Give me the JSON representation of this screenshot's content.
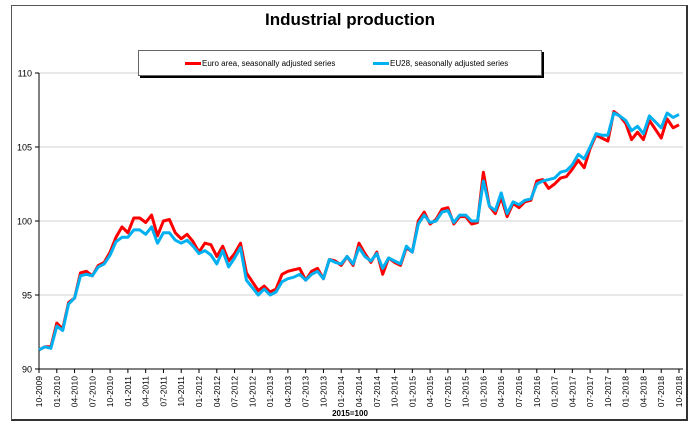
{
  "chart_data": {
    "type": "line",
    "title": "Industrial production",
    "xlabel": "2015=100",
    "ylabel": "",
    "ylim": [
      90,
      110
    ],
    "yticks": [
      90,
      95,
      100,
      105,
      110
    ],
    "grid": true,
    "legend_position": "top-center",
    "x": [
      "10-2009",
      "11-2009",
      "12-2009",
      "01-2010",
      "02-2010",
      "03-2010",
      "04-2010",
      "05-2010",
      "06-2010",
      "07-2010",
      "08-2010",
      "09-2010",
      "10-2010",
      "11-2010",
      "12-2010",
      "01-2011",
      "02-2011",
      "03-2011",
      "04-2011",
      "05-2011",
      "06-2011",
      "07-2011",
      "08-2011",
      "09-2011",
      "10-2011",
      "11-2011",
      "12-2011",
      "01-2012",
      "02-2012",
      "03-2012",
      "04-2012",
      "05-2012",
      "06-2012",
      "07-2012",
      "08-2012",
      "09-2012",
      "10-2012",
      "11-2012",
      "12-2012",
      "01-2013",
      "02-2013",
      "03-2013",
      "04-2013",
      "05-2013",
      "06-2013",
      "07-2013",
      "08-2013",
      "09-2013",
      "10-2013",
      "11-2013",
      "12-2013",
      "01-2014",
      "02-2014",
      "03-2014",
      "04-2014",
      "05-2014",
      "06-2014",
      "07-2014",
      "08-2014",
      "09-2014",
      "10-2014",
      "11-2014",
      "12-2014",
      "01-2015",
      "02-2015",
      "03-2015",
      "04-2015",
      "05-2015",
      "06-2015",
      "07-2015",
      "08-2015",
      "09-2015",
      "10-2015",
      "11-2015",
      "12-2015",
      "01-2016",
      "02-2016",
      "03-2016",
      "04-2016",
      "05-2016",
      "06-2016",
      "07-2016",
      "08-2016",
      "09-2016",
      "10-2016",
      "11-2016",
      "12-2016",
      "01-2017",
      "02-2017",
      "03-2017",
      "04-2017",
      "05-2017",
      "06-2017",
      "07-2017",
      "08-2017",
      "09-2017",
      "10-2017",
      "11-2017",
      "12-2017",
      "01-2018",
      "02-2018",
      "03-2018",
      "04-2018",
      "05-2018",
      "06-2018",
      "07-2018",
      "08-2018",
      "09-2018",
      "10-2018"
    ],
    "xtick_labels": [
      "10-2009",
      "01-2010",
      "04-2010",
      "07-2010",
      "10-2010",
      "01-2011",
      "04-2011",
      "07-2011",
      "10-2011",
      "01-2012",
      "04-2012",
      "07-2012",
      "10-2012",
      "01-2013",
      "04-2013",
      "07-2013",
      "10-2013",
      "01-2014",
      "04-2014",
      "07-2014",
      "10-2014",
      "01-2015",
      "04-2015",
      "07-2015",
      "10-2015",
      "01-2016",
      "04-2016",
      "07-2016",
      "10-2016",
      "01-2017",
      "04-2017",
      "07-2017",
      "10-2017",
      "01-2018",
      "04-2018",
      "07-2018",
      "10-2018"
    ],
    "series": [
      {
        "name": "Euro area, seasonally adjusted series",
        "color": "#ff0000",
        "values": [
          91.3,
          91.5,
          91.5,
          93.1,
          92.7,
          94.5,
          94.8,
          96.5,
          96.6,
          96.3,
          97.0,
          97.2,
          97.9,
          98.9,
          99.6,
          99.2,
          100.2,
          100.2,
          99.9,
          100.4,
          99.0,
          100.0,
          100.1,
          99.2,
          98.8,
          99.1,
          98.6,
          97.9,
          98.5,
          98.4,
          97.6,
          98.3,
          97.3,
          97.8,
          98.5,
          96.5,
          95.9,
          95.3,
          95.6,
          95.2,
          95.4,
          96.4,
          96.6,
          96.7,
          96.8,
          96.0,
          96.6,
          96.8,
          96.1,
          97.4,
          97.3,
          97.0,
          97.6,
          97.0,
          98.5,
          97.8,
          97.2,
          97.9,
          96.4,
          97.5,
          97.2,
          97.0,
          98.2,
          97.9,
          100.0,
          100.6,
          99.8,
          100.1,
          100.8,
          100.9,
          99.8,
          100.3,
          100.3,
          99.8,
          99.9,
          103.3,
          101.0,
          100.5,
          101.6,
          100.3,
          101.2,
          100.9,
          101.3,
          101.4,
          102.7,
          102.8,
          102.2,
          102.5,
          102.9,
          103.0,
          103.5,
          104.1,
          103.6,
          104.9,
          105.8,
          105.6,
          105.4,
          107.4,
          107.1,
          106.6,
          105.5,
          106.0,
          105.5,
          106.8,
          106.2,
          105.6,
          106.9,
          106.3,
          106.5
        ]
      },
      {
        "name": "EU28, seasonally adjusted series",
        "color": "#00b0f0",
        "values": [
          91.3,
          91.5,
          91.4,
          92.9,
          92.6,
          94.4,
          94.8,
          96.3,
          96.4,
          96.3,
          96.9,
          97.1,
          97.7,
          98.6,
          98.9,
          98.9,
          99.4,
          99.4,
          99.1,
          99.6,
          98.5,
          99.2,
          99.2,
          98.7,
          98.5,
          98.7,
          98.3,
          97.8,
          98.0,
          97.7,
          97.1,
          98.0,
          96.9,
          97.5,
          98.2,
          96.0,
          95.5,
          95.0,
          95.4,
          95.0,
          95.2,
          95.9,
          96.1,
          96.2,
          96.4,
          96.0,
          96.4,
          96.6,
          96.1,
          97.4,
          97.2,
          97.1,
          97.6,
          97.1,
          98.2,
          97.6,
          97.3,
          97.8,
          96.8,
          97.5,
          97.3,
          97.1,
          98.3,
          97.9,
          99.8,
          100.4,
          99.9,
          100.0,
          100.6,
          100.7,
          99.9,
          100.4,
          100.4,
          100.0,
          100.0,
          102.7,
          101.0,
          100.7,
          101.9,
          100.5,
          101.3,
          101.1,
          101.4,
          101.5,
          102.5,
          102.7,
          102.8,
          102.9,
          103.3,
          103.4,
          103.8,
          104.5,
          104.2,
          105.0,
          105.9,
          105.8,
          105.8,
          107.3,
          107.1,
          106.8,
          106.1,
          106.4,
          105.9,
          107.1,
          106.7,
          106.3,
          107.3,
          107.0,
          107.2
        ]
      }
    ]
  }
}
